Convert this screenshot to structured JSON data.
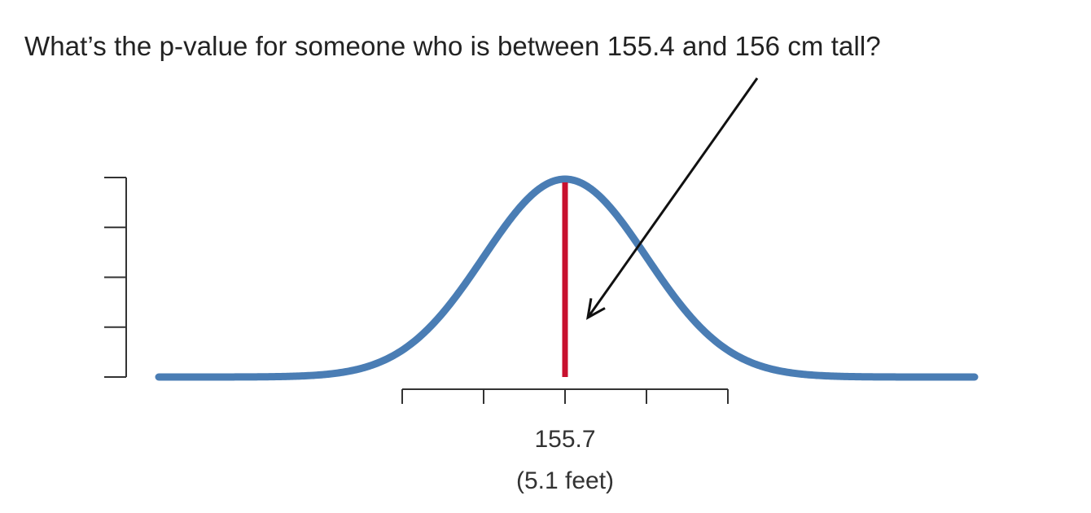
{
  "question": "What’s the p-value for someone who is between 155.4 and 156 cm tall?",
  "colors": {
    "curve": "#4a7db4",
    "mean_line": "#c8102e",
    "axis": "#333333",
    "arrow": "#111111"
  },
  "chart_data": {
    "type": "line",
    "title": "",
    "xlabel": "",
    "ylabel": "",
    "distribution": "normal",
    "mean": 155.7,
    "x_tick_labels": [
      "155.7",
      "(5.1 feet)"
    ],
    "x_ticks_count": 5,
    "y_ticks_count": 5,
    "mean_marker": 155.7,
    "annotation": "arrow pointing at the mean line",
    "grid": false,
    "legend": "none"
  }
}
